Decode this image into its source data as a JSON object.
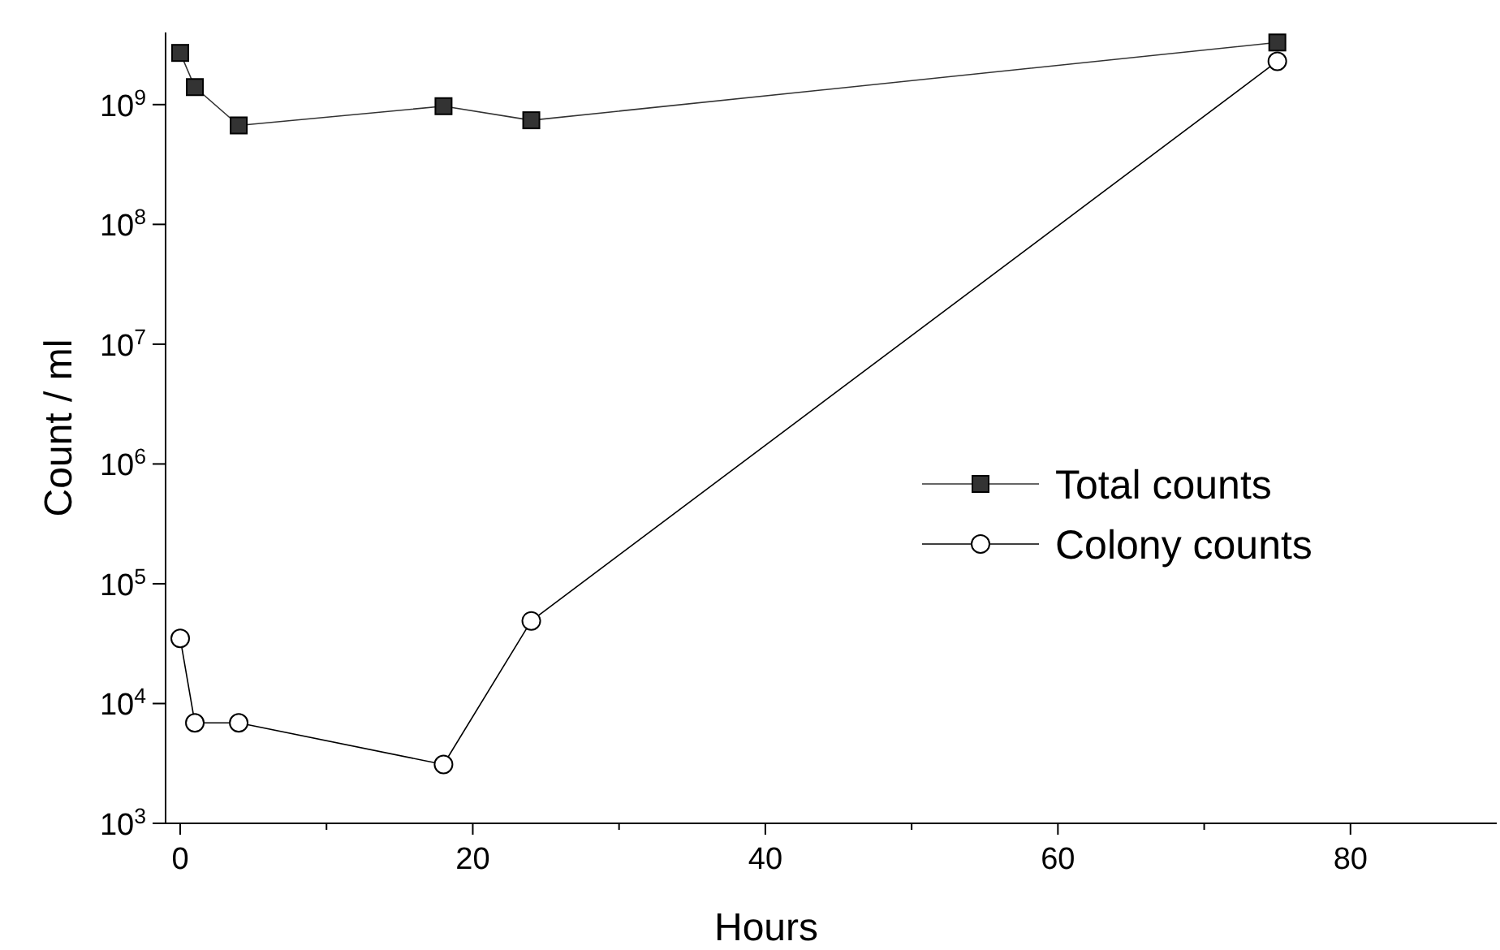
{
  "chart_data": {
    "type": "line",
    "xlabel": "Hours",
    "ylabel": "Count / ml",
    "log": "y",
    "xlim": [
      -1,
      90
    ],
    "xticks": [
      0,
      {
        "value": 10,
        "label": null
      },
      20,
      {
        "value": 30,
        "label": null
      },
      40,
      {
        "value": 50,
        "label": null
      },
      60,
      {
        "value": 70,
        "label": null
      },
      80
    ],
    "ylim": [
      1000,
      4000000000
    ],
    "yticks": [
      {
        "value": 1000,
        "label": "10$^{3}$"
      },
      {
        "value": 10000,
        "label": "10$^{4}$"
      },
      {
        "value": 100000,
        "label": "10$^{5}$"
      },
      {
        "value": 1000000,
        "label": "10$^{6}$"
      },
      {
        "value": 10000000,
        "label": "10$^{7}$"
      },
      {
        "value": 100000000,
        "label": "10$^{8}$"
      },
      {
        "value": 1000000000,
        "label": "10$^{9}$"
      }
    ],
    "legend": "right",
    "grid": false,
    "line_style": "solid",
    "series": [
      {
        "name": "Total counts",
        "color": "#333333",
        "marker": "square",
        "x": [
          0,
          1,
          4,
          18,
          24,
          75
        ],
        "values": [
          2700000000,
          1400000000,
          670000000,
          970000000,
          740000000,
          3300000000
        ]
      },
      {
        "name": "Colony counts",
        "color": "#000000",
        "marker": "circle",
        "x": [
          0,
          1,
          4,
          18,
          24,
          75
        ],
        "values": [
          35000,
          6900,
          6900,
          3100,
          49000,
          2300000000
        ]
      }
    ]
  }
}
